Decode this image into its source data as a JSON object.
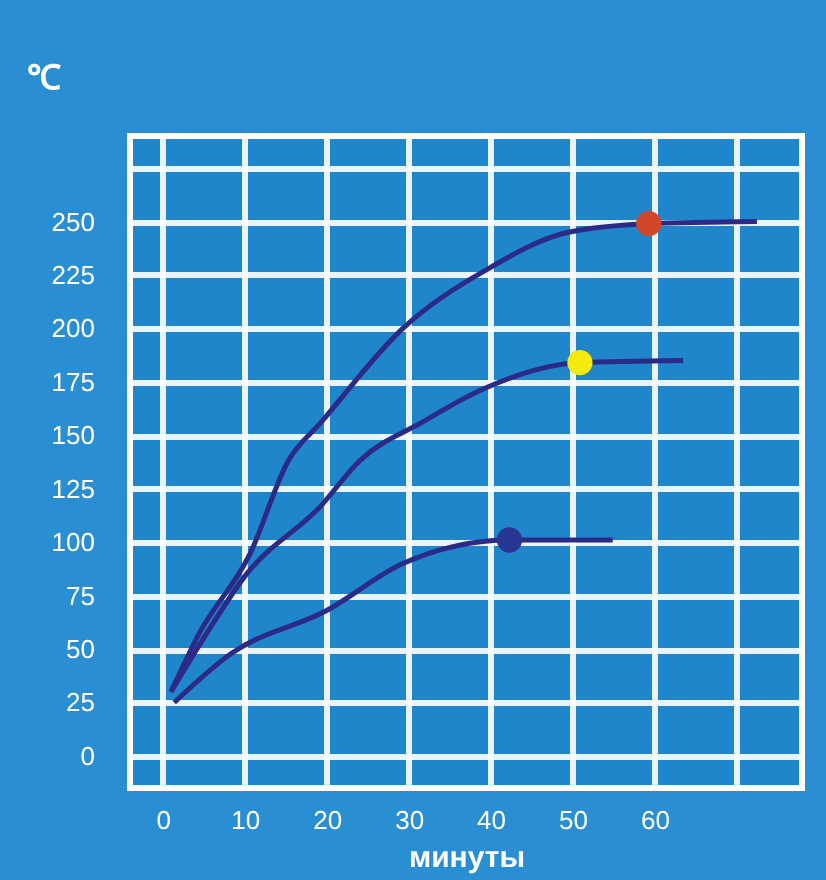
{
  "chart_data": {
    "type": "line",
    "xlabel": "минуты",
    "ylabel": "℃",
    "xlim": [
      -4,
      78
    ],
    "ylim": [
      -15,
      290
    ],
    "xticks": [
      0,
      10,
      20,
      30,
      40,
      50,
      60,
      {
        "value": 70,
        "label": null
      }
    ],
    "yticks": [
      0,
      25,
      50,
      75,
      100,
      125,
      150,
      175,
      200,
      225,
      250,
      {
        "value": 275,
        "label": null
      }
    ],
    "grid": true,
    "series": [
      {
        "color": "#2b2a86",
        "x": [
          1,
          4.4,
          10.7,
          15.3,
          19.3,
          29.3,
          39.3,
          49.5,
          59.3,
          72.5
        ],
        "values": [
          30,
          57,
          95,
          138,
          156,
          200,
          227,
          245,
          249,
          250
        ]
      },
      {
        "color": "#2b2a86",
        "x": [
          1,
          5.3,
          10,
          19.3,
          24,
          31.6,
          39.3,
          50.9,
          63.5
        ],
        "values": [
          30,
          57,
          84,
          117,
          138,
          156,
          172,
          184,
          185
        ]
      },
      {
        "color": "#2b2a86",
        "x": [
          1.4,
          8.4,
          20,
          29.3,
          42.3,
          54.9
        ],
        "values": [
          25,
          48,
          68,
          90,
          101,
          101
        ]
      },
      {
        "type": "scatter",
        "marker": "circle",
        "color": "#d2462a",
        "x": [
          59.3
        ],
        "values": [
          249
        ]
      },
      {
        "type": "scatter",
        "marker": "circle",
        "color": "#f5ea0c",
        "x": [
          50.9
        ],
        "values": [
          184
        ]
      },
      {
        "type": "scatter",
        "marker": "circle",
        "color": "#283593",
        "x": [
          42.3
        ],
        "values": [
          101
        ]
      }
    ]
  }
}
